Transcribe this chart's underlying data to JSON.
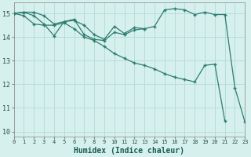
{
  "title": "",
  "xlabel": "Humidex (Indice chaleur)",
  "ylabel": "",
  "bg_color": "#d6f0ee",
  "line_color": "#2d7d6e",
  "grid_color": "#b8ddd8",
  "xlim": [
    0,
    23
  ],
  "ylim": [
    9.8,
    15.45
  ],
  "xticks": [
    0,
    1,
    2,
    3,
    4,
    5,
    6,
    7,
    8,
    9,
    10,
    11,
    12,
    13,
    14,
    15,
    16,
    17,
    18,
    19,
    20,
    21,
    22,
    23
  ],
  "yticks": [
    10,
    11,
    12,
    13,
    14,
    15
  ],
  "series": [
    {
      "x": [
        0,
        1,
        2,
        3,
        4,
        5,
        6,
        7,
        8,
        9,
        10,
        11,
        12,
        13,
        14,
        15,
        16,
        17,
        18,
        19,
        20,
        21,
        22,
        23
      ],
      "y": [
        15.0,
        15.05,
        15.05,
        14.9,
        14.55,
        14.65,
        14.7,
        14.5,
        14.1,
        13.9,
        14.45,
        14.15,
        14.4,
        14.35,
        14.45,
        15.15,
        15.2,
        15.15,
        14.95,
        15.05,
        14.95,
        14.95,
        11.85,
        10.4
      ]
    },
    {
      "x": [
        0,
        1,
        2,
        3,
        4,
        5,
        6,
        7,
        8,
        9,
        10,
        11,
        12,
        13
      ],
      "y": [
        15.0,
        15.05,
        14.9,
        14.55,
        14.05,
        14.65,
        14.75,
        14.1,
        13.9,
        13.85,
        14.2,
        14.1,
        14.3,
        14.35
      ]
    },
    {
      "x": [
        0,
        1,
        2,
        3,
        4,
        5,
        6,
        7,
        8,
        9,
        10,
        11,
        12,
        13,
        14,
        15,
        16,
        17,
        18,
        19,
        20,
        21
      ],
      "y": [
        15.0,
        14.9,
        14.55,
        14.5,
        14.5,
        14.6,
        14.35,
        14.0,
        13.85,
        13.6,
        13.3,
        13.1,
        12.9,
        12.8,
        12.65,
        12.45,
        12.3,
        12.2,
        12.1,
        12.8,
        12.85,
        10.45
      ]
    }
  ]
}
